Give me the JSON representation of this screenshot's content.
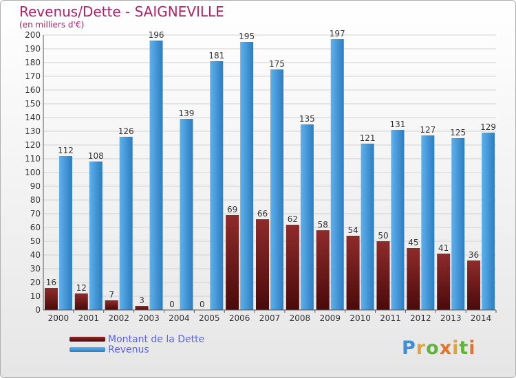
{
  "header": {
    "title": "Revenus/Dette - SAIGNEVILLE",
    "subtitle": "(en milliers d'€)"
  },
  "legend": {
    "debt_label": "Montant de la Dette",
    "revenue_label": "Revenus"
  },
  "logo": {
    "text": "Proxiti"
  },
  "colors": {
    "debt_top": "#8f2b2b",
    "debt_bottom": "#4a0a0a",
    "revenue_top": "#5fb1ec",
    "revenue_bottom": "#2c7cc0",
    "title": "#b0246c",
    "legend_text": "#5a64e0"
  },
  "chart_data": {
    "type": "bar",
    "categories": [
      "2000",
      "2001",
      "2002",
      "2003",
      "2004",
      "2005",
      "2006",
      "2007",
      "2008",
      "2009",
      "2010",
      "2011",
      "2012",
      "2013",
      "2014"
    ],
    "series": [
      {
        "name": "Montant de la Dette",
        "values": [
          16,
          12,
          7,
          3,
          0,
          0,
          69,
          66,
          62,
          58,
          54,
          50,
          45,
          41,
          36
        ]
      },
      {
        "name": "Revenus",
        "values": [
          112,
          108,
          126,
          196,
          139,
          181,
          195,
          175,
          135,
          197,
          121,
          131,
          127,
          125,
          129
        ]
      }
    ],
    "ylim": [
      0,
      200
    ],
    "yticks": [
      0,
      10,
      20,
      30,
      40,
      50,
      60,
      70,
      80,
      90,
      100,
      110,
      120,
      130,
      140,
      150,
      160,
      170,
      180,
      190,
      200
    ],
    "title": "Revenus/Dette - SAIGNEVILLE",
    "ylabel": "(en milliers d'€)",
    "xlabel": "",
    "grid": true,
    "legend_position": "bottom-left"
  }
}
